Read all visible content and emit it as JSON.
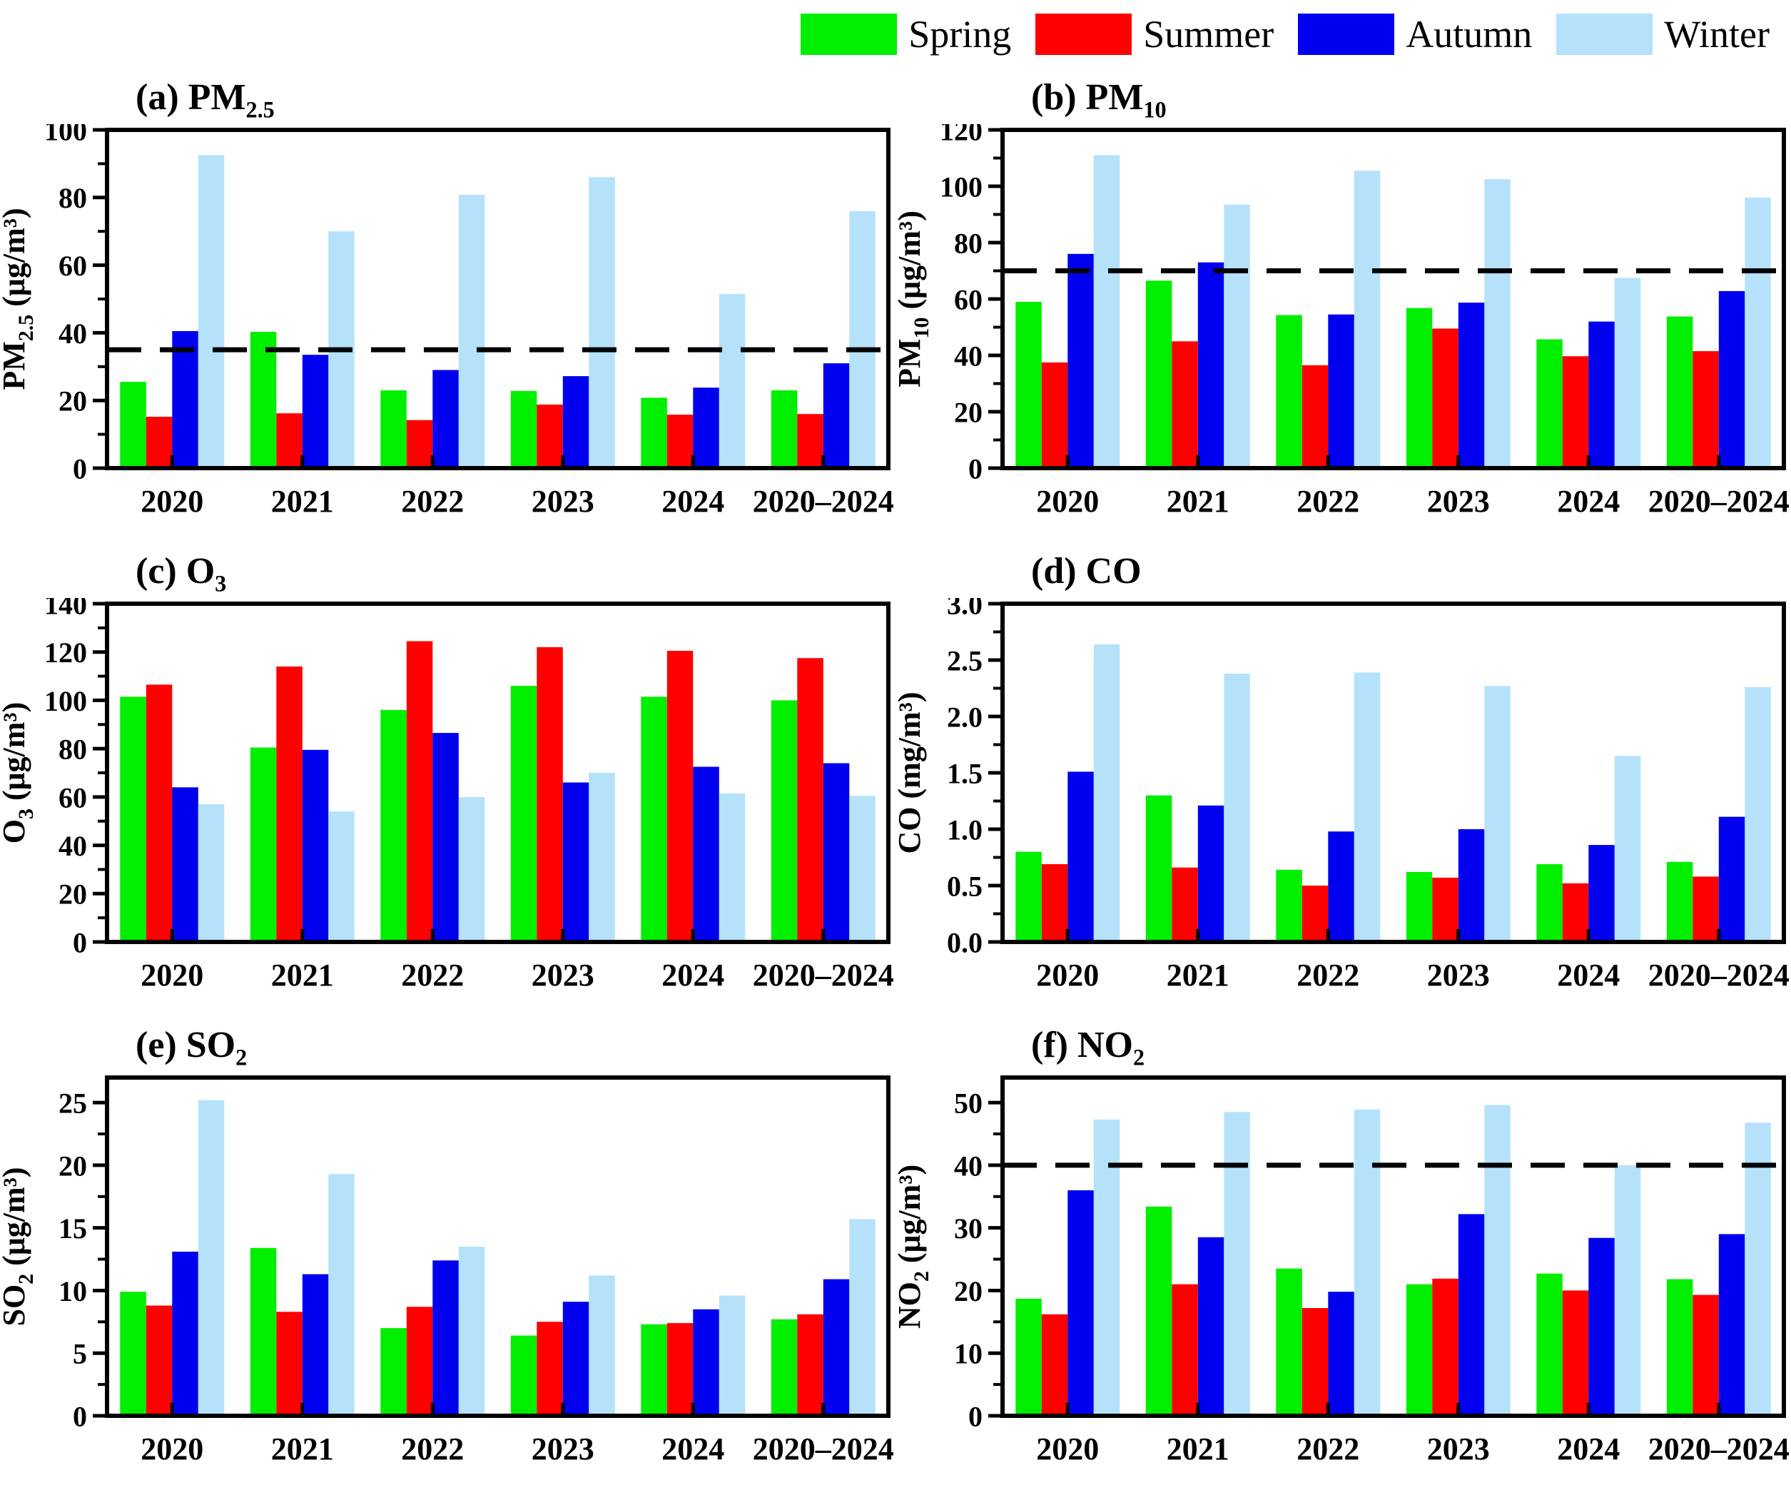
{
  "figure": {
    "background": "#FFFFFF"
  },
  "legend": {
    "items": [
      {
        "label": "Spring",
        "color": "#00EE00"
      },
      {
        "label": "Summer",
        "color": "#FF0000"
      },
      {
        "label": "Autumn",
        "color": "#0000EE"
      },
      {
        "label": "Winter",
        "color": "#B5E2FA"
      }
    ]
  },
  "guideline_color": "#000000",
  "chart_data": [
    {
      "type": "bar",
      "panel": "(a)",
      "name": "PM2.5",
      "title_base": "PM",
      "title_sub": "2.5",
      "ylabel_base": "PM",
      "ylabel_sub": "2.5",
      "ylabel_unit": "(μg/m³)",
      "ylim": [
        0,
        100
      ],
      "ytick_step": 20,
      "ytick_max": 100,
      "tick_decimals": 0,
      "grid": false,
      "legend_position": "top",
      "guideline": 35,
      "categories": [
        "2020",
        "2021",
        "2022",
        "2023",
        "2024",
        "2020–2024"
      ],
      "series": [
        {
          "name": "Spring",
          "values": [
            25.5,
            40.3,
            23.0,
            22.8,
            20.8,
            23.0
          ]
        },
        {
          "name": "Summer",
          "values": [
            15.2,
            16.2,
            14.2,
            18.8,
            15.8,
            16.0
          ]
        },
        {
          "name": "Autumn",
          "values": [
            40.5,
            33.5,
            29.0,
            27.2,
            23.8,
            31.0
          ]
        },
        {
          "name": "Winter",
          "values": [
            92.5,
            70.0,
            80.8,
            86.0,
            51.5,
            76.0
          ]
        }
      ]
    },
    {
      "type": "bar",
      "panel": "(b)",
      "name": "PM10",
      "title_base": "PM",
      "title_sub": "10",
      "ylabel_base": "PM",
      "ylabel_sub": "10",
      "ylabel_unit": "(μg/m³)",
      "ylim": [
        0,
        120
      ],
      "ytick_step": 20,
      "ytick_max": 120,
      "tick_decimals": 0,
      "grid": false,
      "legend_position": "top",
      "guideline": 70,
      "categories": [
        "2020",
        "2021",
        "2022",
        "2023",
        "2024",
        "2020–2024"
      ],
      "series": [
        {
          "name": "Spring",
          "values": [
            59.0,
            66.5,
            54.3,
            56.8,
            45.7,
            53.8
          ]
        },
        {
          "name": "Summer",
          "values": [
            37.5,
            45.0,
            36.5,
            49.5,
            39.7,
            41.5
          ]
        },
        {
          "name": "Autumn",
          "values": [
            76.0,
            73.0,
            54.5,
            58.7,
            52.0,
            62.8
          ]
        },
        {
          "name": "Winter",
          "values": [
            111.0,
            93.5,
            105.5,
            102.5,
            67.5,
            96.0
          ]
        }
      ]
    },
    {
      "type": "bar",
      "panel": "(c)",
      "name": "O3",
      "title_base": "O",
      "title_sub": "3",
      "ylabel_base": "O",
      "ylabel_sub": "3",
      "ylabel_unit": "(μg/m³)",
      "ylim": [
        0,
        140
      ],
      "ytick_step": 20,
      "ytick_max": 140,
      "tick_decimals": 0,
      "grid": false,
      "legend_position": "top",
      "guideline": null,
      "categories": [
        "2020",
        "2021",
        "2022",
        "2023",
        "2024",
        "2020–2024"
      ],
      "series": [
        {
          "name": "Spring",
          "values": [
            101.5,
            80.5,
            96.0,
            106.0,
            101.5,
            100.0
          ]
        },
        {
          "name": "Summer",
          "values": [
            106.5,
            114.0,
            124.5,
            122.0,
            120.5,
            117.5
          ]
        },
        {
          "name": "Autumn",
          "values": [
            64.0,
            79.5,
            86.5,
            66.0,
            72.5,
            74.0
          ]
        },
        {
          "name": "Winter",
          "values": [
            57.0,
            54.0,
            60.0,
            70.0,
            61.5,
            60.5
          ]
        }
      ]
    },
    {
      "type": "bar",
      "panel": "(d)",
      "name": "CO",
      "title_base": "CO",
      "title_sub": "",
      "ylabel_base": "CO",
      "ylabel_sub": "",
      "ylabel_unit": "(mg/m³)",
      "ylim": [
        0,
        3.0
      ],
      "ytick_step": 0.5,
      "ytick_max": 3.0,
      "tick_decimals": 1,
      "grid": false,
      "legend_position": "top",
      "guideline": null,
      "categories": [
        "2020",
        "2021",
        "2022",
        "2023",
        "2024",
        "2020–2024"
      ],
      "series": [
        {
          "name": "Spring",
          "values": [
            0.8,
            1.3,
            0.64,
            0.62,
            0.69,
            0.71
          ]
        },
        {
          "name": "Summer",
          "values": [
            0.69,
            0.66,
            0.5,
            0.57,
            0.52,
            0.58
          ]
        },
        {
          "name": "Autumn",
          "values": [
            1.51,
            1.21,
            0.98,
            1.0,
            0.86,
            1.11
          ]
        },
        {
          "name": "Winter",
          "values": [
            2.64,
            2.38,
            2.39,
            2.27,
            1.65,
            2.26
          ]
        }
      ]
    },
    {
      "type": "bar",
      "panel": "(e)",
      "name": "SO2",
      "title_base": "SO",
      "title_sub": "2",
      "ylabel_base": "SO",
      "ylabel_sub": "2",
      "ylabel_unit": "(μg/m³)",
      "ylim": [
        0,
        27
      ],
      "ytick_step": 5,
      "ytick_max": 25,
      "tick_decimals": 0,
      "grid": false,
      "legend_position": "top",
      "guideline": null,
      "categories": [
        "2020",
        "2021",
        "2022",
        "2023",
        "2024",
        "2020–2024"
      ],
      "series": [
        {
          "name": "Spring",
          "values": [
            9.9,
            13.4,
            7.0,
            6.4,
            7.3,
            7.7
          ]
        },
        {
          "name": "Summer",
          "values": [
            8.8,
            8.3,
            8.7,
            7.5,
            7.4,
            8.1
          ]
        },
        {
          "name": "Autumn",
          "values": [
            13.1,
            11.3,
            12.4,
            9.1,
            8.5,
            10.9
          ]
        },
        {
          "name": "Winter",
          "values": [
            25.2,
            19.3,
            13.5,
            11.2,
            9.6,
            15.7
          ]
        }
      ]
    },
    {
      "type": "bar",
      "panel": "(f)",
      "name": "NO2",
      "title_base": "NO",
      "title_sub": "2",
      "ylabel_base": "NO",
      "ylabel_sub": "2",
      "ylabel_unit": "(μg/m³)",
      "ylim": [
        0,
        54
      ],
      "ytick_step": 10,
      "ytick_max": 50,
      "tick_decimals": 0,
      "grid": false,
      "legend_position": "top",
      "guideline": 40,
      "categories": [
        "2020",
        "2021",
        "2022",
        "2023",
        "2024",
        "2020–2024"
      ],
      "series": [
        {
          "name": "Spring",
          "values": [
            18.7,
            33.4,
            23.5,
            21.0,
            22.7,
            21.8
          ]
        },
        {
          "name": "Summer",
          "values": [
            16.2,
            21.0,
            17.2,
            21.9,
            20.0,
            19.3
          ]
        },
        {
          "name": "Autumn",
          "values": [
            36.0,
            28.5,
            19.8,
            32.2,
            28.4,
            29.0
          ]
        },
        {
          "name": "Winter",
          "values": [
            47.3,
            48.5,
            48.9,
            49.6,
            40.0,
            46.8
          ]
        }
      ]
    }
  ]
}
